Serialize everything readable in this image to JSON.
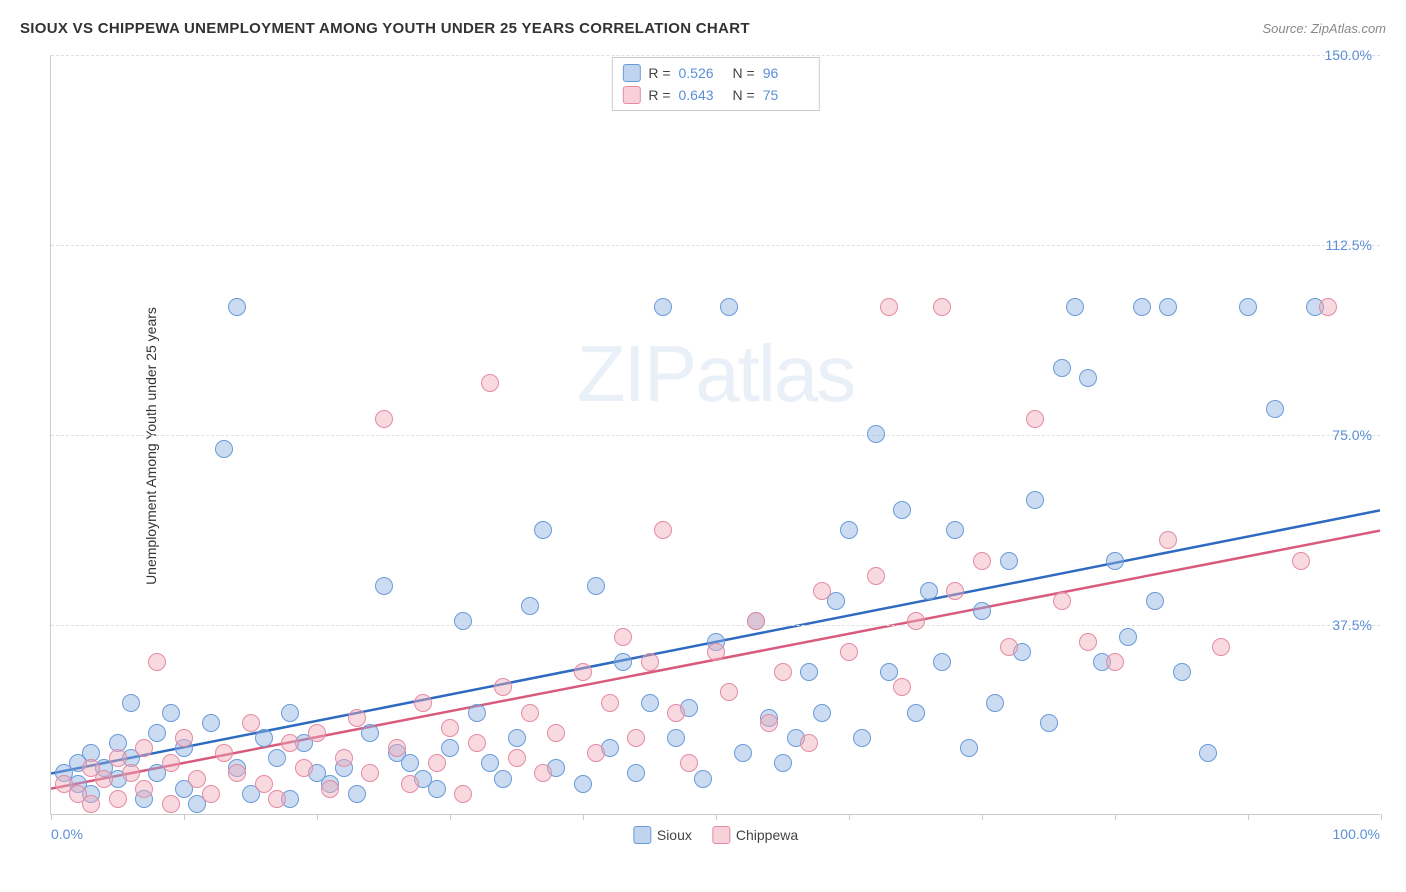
{
  "title": "SIOUX VS CHIPPEWA UNEMPLOYMENT AMONG YOUTH UNDER 25 YEARS CORRELATION CHART",
  "source": "Source: ZipAtlas.com",
  "ylabel": "Unemployment Among Youth under 25 years",
  "watermark_a": "ZIP",
  "watermark_b": "atlas",
  "chart": {
    "type": "scatter",
    "xlim": [
      0,
      100
    ],
    "ylim": [
      0,
      150
    ],
    "xtick_start": "0.0%",
    "xtick_end": "100.0%",
    "xtick_positions": [
      0,
      10,
      20,
      30,
      40,
      50,
      60,
      70,
      80,
      90,
      100
    ],
    "ytick_labels": [
      "37.5%",
      "75.0%",
      "112.5%",
      "150.0%"
    ],
    "ytick_values": [
      37.5,
      75,
      112.5,
      150
    ],
    "grid_color": "#e0e0e0",
    "axis_color": "#cccccc",
    "background_color": "#ffffff",
    "label_color": "#5b8fd6",
    "marker_size": 18
  },
  "series": [
    {
      "name": "Sioux",
      "fill": "rgba(139,177,226,0.45)",
      "stroke": "#6a9bd8",
      "trend_color": "#2e6bc0",
      "trend": {
        "x1": 0,
        "y1": 8,
        "x2": 100,
        "y2": 60
      },
      "R": "0.526",
      "N": "96",
      "data": [
        [
          1,
          8
        ],
        [
          2,
          10
        ],
        [
          2,
          6
        ],
        [
          3,
          12
        ],
        [
          3,
          4
        ],
        [
          4,
          9
        ],
        [
          5,
          14
        ],
        [
          5,
          7
        ],
        [
          6,
          22
        ],
        [
          6,
          11
        ],
        [
          7,
          3
        ],
        [
          8,
          16
        ],
        [
          8,
          8
        ],
        [
          9,
          20
        ],
        [
          10,
          5
        ],
        [
          10,
          13
        ],
        [
          11,
          2
        ],
        [
          12,
          18
        ],
        [
          13,
          72
        ],
        [
          14,
          100
        ],
        [
          14,
          9
        ],
        [
          15,
          4
        ],
        [
          16,
          15
        ],
        [
          17,
          11
        ],
        [
          18,
          3
        ],
        [
          18,
          20
        ],
        [
          19,
          14
        ],
        [
          20,
          8
        ],
        [
          21,
          6
        ],
        [
          22,
          9
        ],
        [
          23,
          4
        ],
        [
          24,
          16
        ],
        [
          25,
          45
        ],
        [
          26,
          12
        ],
        [
          27,
          10
        ],
        [
          28,
          7
        ],
        [
          29,
          5
        ],
        [
          30,
          13
        ],
        [
          31,
          38
        ],
        [
          32,
          20
        ],
        [
          33,
          10
        ],
        [
          34,
          7
        ],
        [
          35,
          15
        ],
        [
          36,
          41
        ],
        [
          37,
          56
        ],
        [
          38,
          9
        ],
        [
          40,
          6
        ],
        [
          41,
          45
        ],
        [
          42,
          13
        ],
        [
          43,
          30
        ],
        [
          44,
          8
        ],
        [
          45,
          22
        ],
        [
          46,
          100
        ],
        [
          47,
          15
        ],
        [
          48,
          21
        ],
        [
          49,
          7
        ],
        [
          50,
          34
        ],
        [
          51,
          100
        ],
        [
          52,
          12
        ],
        [
          53,
          38
        ],
        [
          54,
          19
        ],
        [
          55,
          10
        ],
        [
          56,
          15
        ],
        [
          57,
          28
        ],
        [
          58,
          20
        ],
        [
          59,
          42
        ],
        [
          60,
          56
        ],
        [
          61,
          15
        ],
        [
          62,
          75
        ],
        [
          63,
          28
        ],
        [
          64,
          60
        ],
        [
          65,
          20
        ],
        [
          66,
          44
        ],
        [
          67,
          30
        ],
        [
          68,
          56
        ],
        [
          69,
          13
        ],
        [
          70,
          40
        ],
        [
          71,
          22
        ],
        [
          72,
          50
        ],
        [
          73,
          32
        ],
        [
          74,
          62
        ],
        [
          75,
          18
        ],
        [
          76,
          88
        ],
        [
          77,
          100
        ],
        [
          78,
          86
        ],
        [
          79,
          30
        ],
        [
          80,
          50
        ],
        [
          81,
          35
        ],
        [
          82,
          100
        ],
        [
          83,
          42
        ],
        [
          84,
          100
        ],
        [
          85,
          28
        ],
        [
          87,
          12
        ],
        [
          90,
          100
        ],
        [
          92,
          80
        ],
        [
          95,
          100
        ]
      ]
    },
    {
      "name": "Chippewa",
      "fill": "rgba(240,170,185,0.45)",
      "stroke": "#e48ba3",
      "trend_color": "#d85a7d",
      "trend": {
        "x1": 0,
        "y1": 5,
        "x2": 100,
        "y2": 56
      },
      "R": "0.643",
      "N": "75",
      "data": [
        [
          1,
          6
        ],
        [
          2,
          4
        ],
        [
          3,
          9
        ],
        [
          3,
          2
        ],
        [
          4,
          7
        ],
        [
          5,
          11
        ],
        [
          5,
          3
        ],
        [
          6,
          8
        ],
        [
          7,
          5
        ],
        [
          7,
          13
        ],
        [
          8,
          30
        ],
        [
          9,
          10
        ],
        [
          9,
          2
        ],
        [
          10,
          15
        ],
        [
          11,
          7
        ],
        [
          12,
          4
        ],
        [
          13,
          12
        ],
        [
          14,
          8
        ],
        [
          15,
          18
        ],
        [
          16,
          6
        ],
        [
          17,
          3
        ],
        [
          18,
          14
        ],
        [
          19,
          9
        ],
        [
          20,
          16
        ],
        [
          21,
          5
        ],
        [
          22,
          11
        ],
        [
          23,
          19
        ],
        [
          24,
          8
        ],
        [
          25,
          78
        ],
        [
          26,
          13
        ],
        [
          27,
          6
        ],
        [
          28,
          22
        ],
        [
          29,
          10
        ],
        [
          30,
          17
        ],
        [
          31,
          4
        ],
        [
          32,
          14
        ],
        [
          33,
          85
        ],
        [
          34,
          25
        ],
        [
          35,
          11
        ],
        [
          36,
          20
        ],
        [
          37,
          8
        ],
        [
          38,
          16
        ],
        [
          40,
          28
        ],
        [
          41,
          12
        ],
        [
          42,
          22
        ],
        [
          43,
          35
        ],
        [
          44,
          15
        ],
        [
          45,
          30
        ],
        [
          46,
          56
        ],
        [
          47,
          20
        ],
        [
          48,
          10
        ],
        [
          50,
          32
        ],
        [
          51,
          24
        ],
        [
          53,
          38
        ],
        [
          54,
          18
        ],
        [
          55,
          28
        ],
        [
          57,
          14
        ],
        [
          58,
          44
        ],
        [
          60,
          32
        ],
        [
          62,
          47
        ],
        [
          63,
          100
        ],
        [
          64,
          25
        ],
        [
          65,
          38
        ],
        [
          67,
          100
        ],
        [
          68,
          44
        ],
        [
          70,
          50
        ],
        [
          72,
          33
        ],
        [
          74,
          78
        ],
        [
          76,
          42
        ],
        [
          78,
          34
        ],
        [
          80,
          30
        ],
        [
          84,
          54
        ],
        [
          88,
          33
        ],
        [
          94,
          50
        ],
        [
          96,
          100
        ]
      ]
    }
  ],
  "legend": {
    "stats_text": {
      "R_prefix": "R =",
      "N_prefix": "N ="
    },
    "bottom": [
      "Sioux",
      "Chippewa"
    ]
  }
}
